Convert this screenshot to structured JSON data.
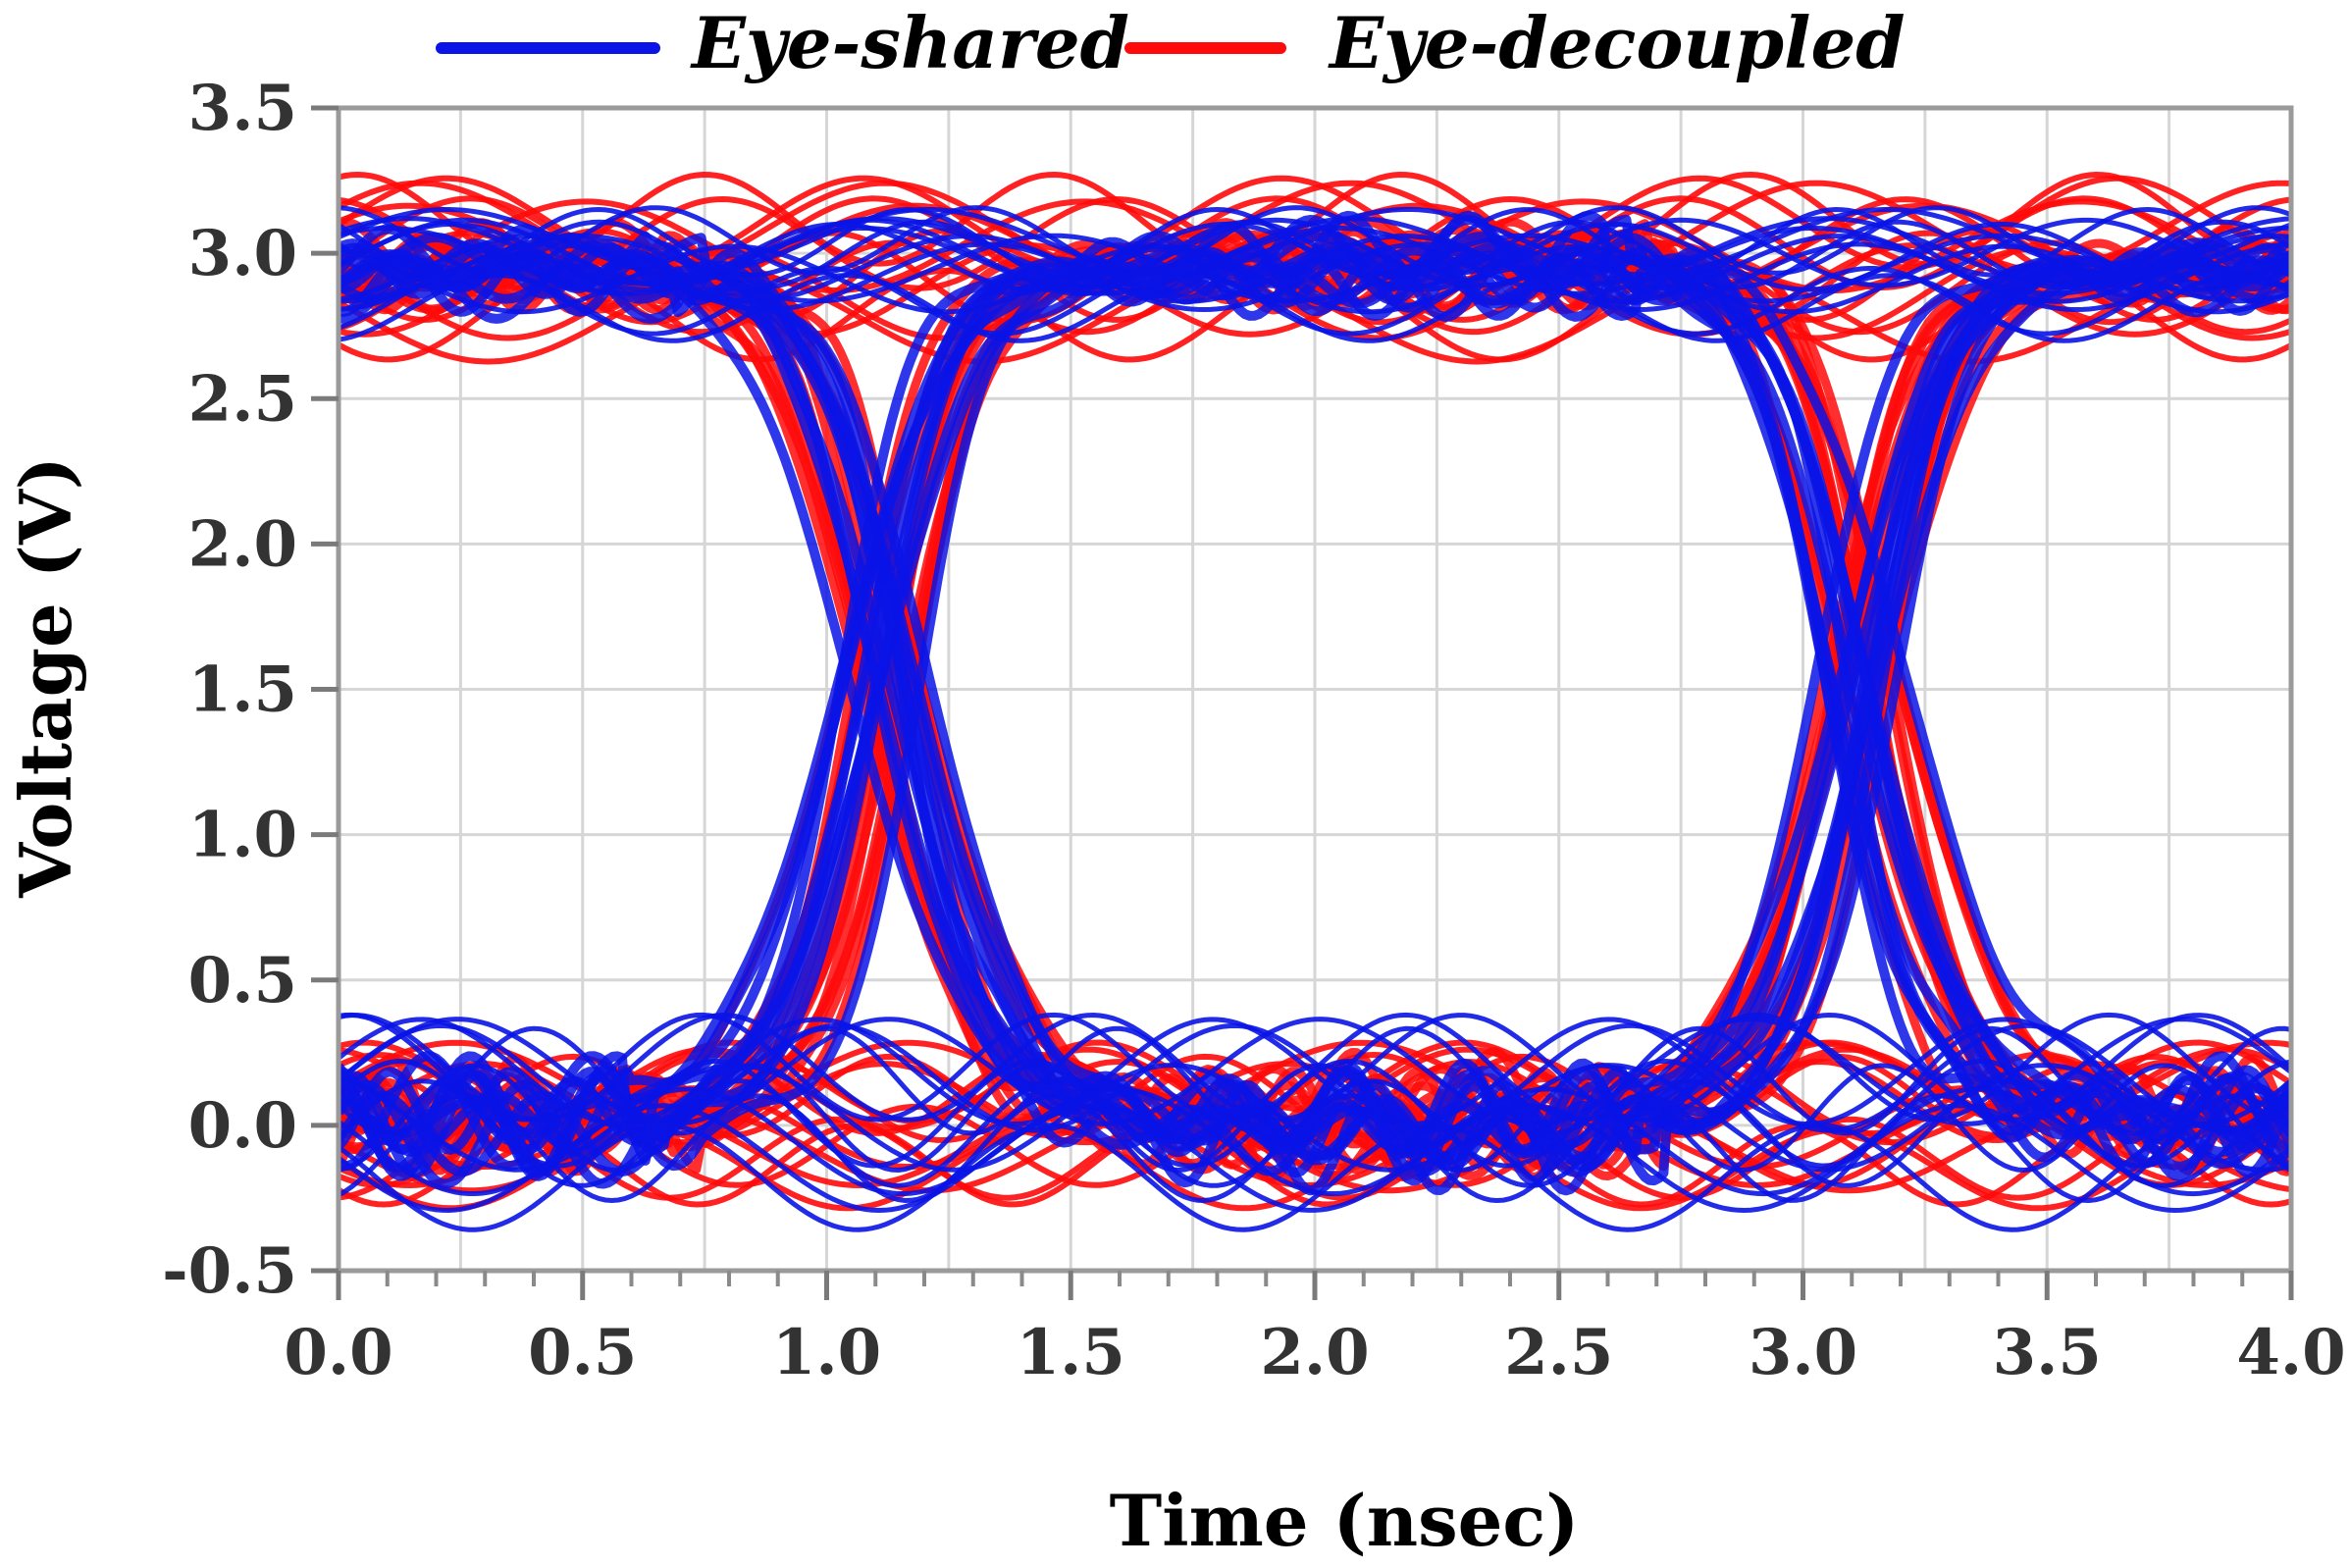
{
  "chart_data": {
    "type": "line",
    "title": "",
    "xlabel": "Time (nsec)",
    "ylabel": "Voltage (V)",
    "xlim": [
      0,
      4
    ],
    "ylim": [
      -0.5,
      3.5
    ],
    "x_ticks": [
      "0.0",
      "0.5",
      "1.0",
      "1.5",
      "2.0",
      "2.5",
      "3.0",
      "3.5",
      "4.0"
    ],
    "y_ticks": [
      "3.5",
      "3.0",
      "2.5",
      "2.0",
      "1.5",
      "1.0",
      "0.5",
      "0.0",
      "-0.5"
    ],
    "x_tick_values": [
      0,
      0.5,
      1.0,
      1.5,
      2.0,
      2.5,
      3.0,
      3.5,
      4.0
    ],
    "y_tick_values": [
      3.5,
      3.0,
      2.5,
      2.0,
      1.5,
      1.0,
      0.5,
      0.0,
      -0.5
    ],
    "grid": true,
    "legend_position": "top-center",
    "series": [
      {
        "name": "Eye-shared",
        "color": "#0a14e6",
        "high_level_v": 2.95,
        "low_level_v": 0.0,
        "high_band_v": [
          2.8,
          3.05
        ],
        "low_band_v": [
          -0.2,
          0.2
        ],
        "crossing_times_ns": [
          1.12,
          3.12
        ],
        "crossing_voltage_v": 1.7
      },
      {
        "name": "Eye-decoupled",
        "color": "#ff0a0a",
        "high_level_v": 2.95,
        "low_level_v": 0.0,
        "high_band_v": [
          2.78,
          3.12
        ],
        "low_band_v": [
          -0.15,
          0.15
        ],
        "crossing_times_ns": [
          1.1,
          3.1
        ],
        "crossing_voltage_v": 1.7
      }
    ]
  }
}
